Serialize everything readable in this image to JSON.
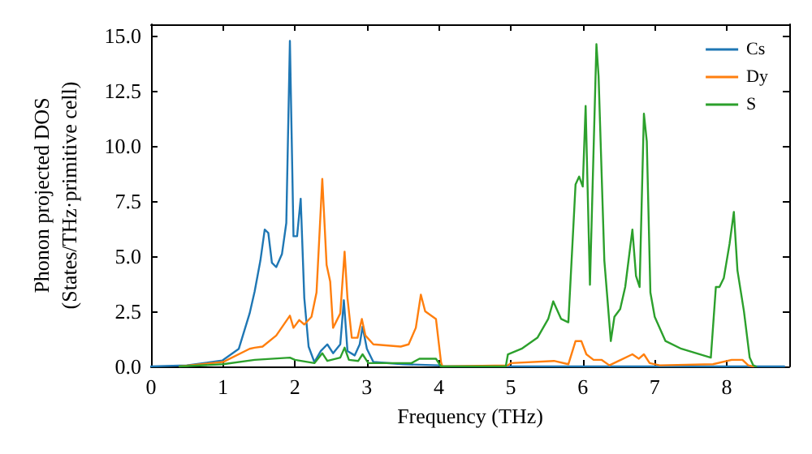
{
  "chart_data": {
    "type": "line",
    "xlabel": "Frequency (THz)",
    "ylabel": "Phonon projected DOS\n(States/THz·primitive cell)",
    "xlim": [
      0,
      8.87
    ],
    "xticks": [
      0,
      1,
      2,
      3,
      4,
      5,
      6,
      7,
      8
    ],
    "ylim": [
      0,
      15.5
    ],
    "yticks": [
      {
        "value": 0,
        "label": "0.0"
      },
      2.5,
      {
        "value": 5,
        "label": "5.0"
      },
      7.5,
      {
        "value": 10,
        "label": "10.0"
      },
      12.5,
      {
        "value": 15,
        "label": "15.0"
      }
    ],
    "grid": false,
    "legend": "top right",
    "marker": "none",
    "line_style": "solid",
    "series": [
      {
        "name": "Cs",
        "color": "#1f77b4",
        "x": [
          0,
          0.5,
          0.99,
          1.22,
          1.37,
          1.44,
          1.52,
          1.58,
          1.63,
          1.68,
          1.74,
          1.82,
          1.88,
          1.93,
          1.98,
          2.03,
          2.08,
          2.13,
          2.19,
          2.27,
          2.36,
          2.45,
          2.53,
          2.63,
          2.68,
          2.73,
          2.83,
          2.9,
          2.94,
          3.0,
          3.09,
          3.5,
          4.0,
          4.03,
          8.8
        ],
        "values": [
          0,
          0.05,
          0.27,
          0.8,
          2.4,
          3.4,
          4.8,
          6.2,
          6.05,
          4.7,
          4.5,
          5.1,
          6.5,
          14.75,
          5.9,
          5.9,
          7.6,
          3.1,
          0.9,
          0.2,
          0.7,
          1.0,
          0.6,
          1.0,
          3.0,
          0.7,
          0.5,
          1.0,
          1.8,
          0.8,
          0.2,
          0.1,
          0.05,
          0,
          0
        ]
      },
      {
        "name": "Dy",
        "color": "#ff7f0e",
        "x": [
          0.4,
          1,
          1.37,
          1.44,
          1.55,
          1.74,
          1.93,
          1.98,
          2.06,
          2.13,
          2.23,
          2.3,
          2.38,
          2.44,
          2.49,
          2.53,
          2.63,
          2.69,
          2.73,
          2.79,
          2.87,
          2.93,
          2.98,
          3.09,
          3.47,
          3.58,
          3.68,
          3.75,
          3.81,
          3.96,
          4.03,
          4.05,
          4.96,
          5,
          5.6,
          5.8,
          5.9,
          5.98,
          6.05,
          6.15,
          6.26,
          6.37,
          6.69,
          6.78,
          6.85,
          6.93,
          7.07,
          7.81,
          8.07,
          8.22,
          8.3,
          8.37
        ],
        "values": [
          0,
          0.2,
          0.8,
          0.85,
          0.9,
          1.4,
          2.3,
          1.75,
          2.1,
          1.9,
          2.25,
          3.35,
          8.5,
          4.6,
          3.85,
          1.75,
          2.4,
          5.2,
          3.1,
          1.3,
          1.3,
          2.15,
          1.4,
          1.0,
          0.9,
          1.0,
          1.75,
          3.25,
          2.5,
          2.15,
          0.2,
          0,
          0.05,
          0.15,
          0.25,
          0.1,
          1.15,
          1.15,
          0.55,
          0.3,
          0.3,
          0.05,
          0.55,
          0.35,
          0.55,
          0.15,
          0.05,
          0.1,
          0.3,
          0.3,
          0.05,
          0
        ]
      },
      {
        "name": "S",
        "color": "#2ca02c",
        "x": [
          0.4,
          1,
          1.44,
          1.93,
          2.0,
          2.27,
          2.38,
          2.45,
          2.63,
          2.69,
          2.75,
          2.88,
          2.94,
          3.02,
          3.62,
          3.73,
          3.96,
          4.03,
          4.93,
          4.96,
          5.15,
          5.37,
          5.52,
          5.59,
          5.7,
          5.8,
          5.9,
          5.95,
          6.0,
          6.04,
          6.1,
          6.19,
          6.22,
          6.3,
          6.39,
          6.44,
          6.52,
          6.59,
          6.69,
          6.74,
          6.79,
          6.85,
          6.89,
          6.94,
          7.0,
          7.15,
          7.37,
          7.78,
          7.85,
          7.9,
          7.96,
          8.04,
          8.1,
          8.15,
          8.24,
          8.32,
          8.37,
          8.41
        ],
        "values": [
          0,
          0.1,
          0.3,
          0.4,
          0.3,
          0.15,
          0.6,
          0.25,
          0.4,
          0.85,
          0.3,
          0.25,
          0.55,
          0.15,
          0.15,
          0.35,
          0.35,
          0,
          0,
          0.55,
          0.8,
          1.3,
          2.15,
          2.95,
          2.15,
          2.0,
          8.25,
          8.6,
          8.15,
          11.8,
          3.7,
          14.6,
          13.15,
          4.8,
          1.15,
          2.25,
          2.6,
          3.6,
          6.2,
          4.1,
          3.6,
          11.45,
          10.2,
          3.35,
          2.25,
          1.15,
          0.8,
          0.4,
          3.6,
          3.6,
          4.0,
          5.55,
          7.0,
          4.35,
          2.5,
          0.4,
          0.05,
          0
        ]
      }
    ]
  }
}
